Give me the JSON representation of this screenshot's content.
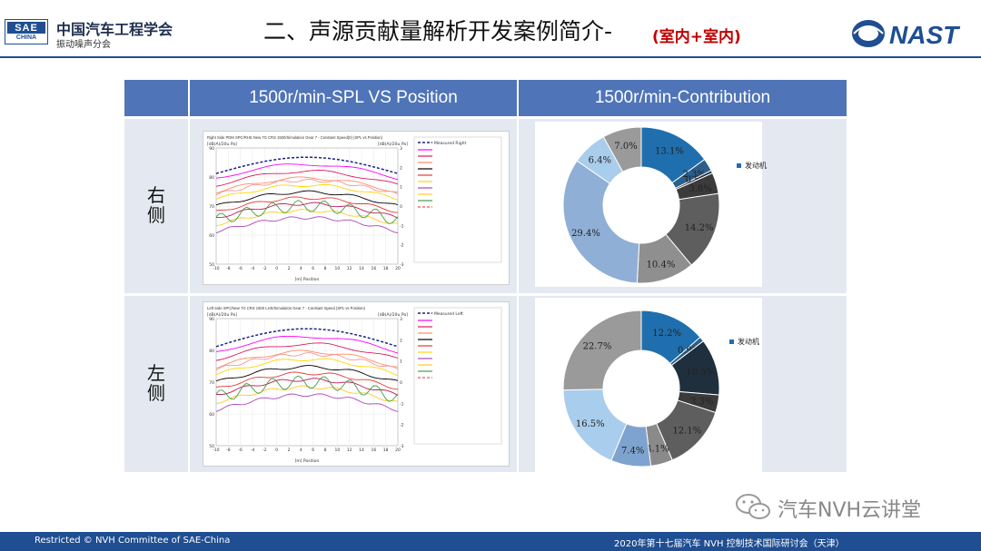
{
  "header": {
    "logo_top": "SAE",
    "logo_bottom": "CHINA",
    "org_name": "中国汽车工程学会",
    "org_sub": "振动噪声分会",
    "title": "二、声源贡献量解析开发案例简介-",
    "title_accent": "(室内+室内)",
    "partner_logo": "NAST"
  },
  "table": {
    "col_headers": [
      "",
      "1500r/min-SPL VS Position",
      "1500r/min-Contribution"
    ],
    "rows": [
      {
        "label_line1": "右",
        "label_line2": "侧",
        "plot_title": "Right Side PDM SPC/RHS New 7G CRS 1500/Simulation Gear 7 - Constant Speed(0) (SPL vs Position)",
        "plot_unit_left": "[dB(A)/20u Pa]",
        "plot_unit_right": "[dB(A)/20u Pa]",
        "plot_legend_first": "Measured Right",
        "plot_xlabel": "[m] Position",
        "plot_yticks": [
          "90",
          "80",
          "70",
          "60",
          "50"
        ],
        "plot_y2ticks": [
          "3",
          "2",
          "1",
          "0",
          "-1",
          "-2",
          "-3"
        ],
        "plot_xticks": [
          "-10",
          "-8",
          "-6",
          "-4",
          "-2",
          "0",
          "2",
          "4",
          "6",
          "8",
          "10",
          "12",
          "14",
          "16",
          "18",
          "20"
        ]
      },
      {
        "label_line1": "左",
        "label_line2": "侧",
        "plot_title": "Left Side SPC/New 7G CRS 1500 LHS/Simulation Gear 7 - Constant Speed (SPL vs Position)",
        "plot_unit_left": "[dB(A)/20u Pa]",
        "plot_unit_right": "[dB(A)/20u Pa]",
        "plot_legend_first": "Measured Left",
        "plot_xlabel": "[m] Position",
        "plot_yticks": [
          "90",
          "80",
          "70",
          "60",
          "50"
        ],
        "plot_y2ticks": [
          "3",
          "2",
          "1",
          "0",
          "-1",
          "-2",
          "-3"
        ],
        "plot_xticks": [
          "-10",
          "-8",
          "-6",
          "-4",
          "-2",
          "0",
          "2",
          "4",
          "6",
          "8",
          "10",
          "12",
          "14",
          "16",
          "18",
          "20"
        ]
      }
    ]
  },
  "chart_data": [
    {
      "type": "pie",
      "legend_label": "发动机",
      "legend_position": "right",
      "slices": [
        {
          "label": "13.1%",
          "value": 13.1,
          "color": "#1f6fae"
        },
        {
          "label": "2.3%",
          "value": 2.3,
          "color": "#2c5f8a"
        },
        {
          "label": "0.5%",
          "value": 0.5,
          "color": "#1a2e3f"
        },
        {
          "label": "3.8%",
          "value": 3.8,
          "color": "#3b3b3b"
        },
        {
          "label": "14.2%",
          "value": 14.2,
          "color": "#5e5e5e"
        },
        {
          "label": "10.4%",
          "value": 10.4,
          "color": "#8f8f8f"
        },
        {
          "label": "29.4%",
          "value": 29.4,
          "color": "#8fafd6"
        },
        {
          "label": "6.4%",
          "value": 6.4,
          "color": "#a9cdec"
        },
        {
          "label": "7.0%",
          "value": 7.0,
          "color": "#9a9a9a"
        }
      ]
    },
    {
      "type": "pie",
      "legend_label": "发动机",
      "legend_position": "right",
      "slices": [
        {
          "label": "12.2%",
          "value": 12.2,
          "color": "#1f6fae"
        },
        {
          "label": "0.9%",
          "value": 0.9,
          "color": "#2c5f8a"
        },
        {
          "label": "10.5%",
          "value": 10.5,
          "color": "#1f2f3d"
        },
        {
          "label": "3.3%",
          "value": 3.3,
          "color": "#3b3b3b"
        },
        {
          "label": "12.1%",
          "value": 12.1,
          "color": "#5e5e5e"
        },
        {
          "label": "4.1%",
          "value": 4.1,
          "color": "#8a8a8a"
        },
        {
          "label": "7.4%",
          "value": 7.4,
          "color": "#7fa3cf"
        },
        {
          "label": "16.5%",
          "value": 16.5,
          "color": "#a9cdec"
        },
        {
          "label": "22.7%",
          "value": 22.7,
          "color": "#9a9a9a"
        }
      ]
    }
  ],
  "watermark": "汽车NVH云讲堂",
  "footer": {
    "left": "Restricted © NVH Committee of SAE-China",
    "right": "2020年第十七届汽车 NVH 控制技术国际研讨会（天津）"
  }
}
